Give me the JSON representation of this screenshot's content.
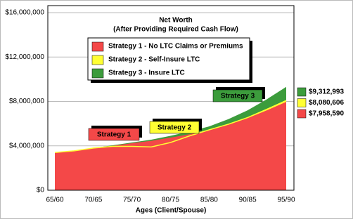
{
  "chart_data": {
    "type": "area",
    "title": "Net Worth",
    "subtitle": "(After Providing Required Cash Flow)",
    "x_label": "Ages (Client/Spouse)",
    "categories": [
      "65/60",
      null,
      "70/65",
      null,
      "75/70",
      null,
      "80/75",
      null,
      "85/80",
      null,
      "90/85",
      null,
      "95/90"
    ],
    "series": [
      {
        "name": "Strategy 1 -  No LTC Claims or Premiums",
        "color": "#f44848",
        "values": [
          3400000,
          3550000,
          3800000,
          4000000,
          4240000,
          4450000,
          4740000,
          5050000,
          5440000,
          5900000,
          6500000,
          7200000,
          7958590
        ],
        "value_labels": [
          null,
          null,
          null,
          null,
          null,
          null,
          null,
          null,
          null,
          null,
          null,
          null,
          "$7,958,590"
        ]
      },
      {
        "name": "Strategy 2 -  Self-Insure LTC",
        "color": "#ffff33",
        "values": [
          3400000,
          3550000,
          3800000,
          3950000,
          3950000,
          3900000,
          4300000,
          4900000,
          5440000,
          5950000,
          6550000,
          7300000,
          8080606
        ],
        "value_labels": [
          null,
          null,
          null,
          null,
          null,
          null,
          null,
          null,
          null,
          null,
          null,
          null,
          "$8,080,606"
        ]
      },
      {
        "name": "Strategy 3 -  Insure LTC",
        "color": "#3c9c3c",
        "values": [
          3400000,
          3550000,
          3800000,
          4050000,
          4300000,
          4550000,
          4900000,
          5300000,
          5750000,
          6400000,
          7200000,
          8200000,
          9312993
        ],
        "value_labels": [
          null,
          null,
          null,
          null,
          null,
          null,
          null,
          null,
          null,
          null,
          null,
          null,
          "$9,312,993"
        ]
      }
    ],
    "annotations": [
      {
        "text": "Strategy 1",
        "color": "#f44848"
      },
      {
        "text": "Strategy 2",
        "color": "#ffff33"
      },
      {
        "text": "Strategy 3",
        "color": "#3c9c3c"
      }
    ],
    "ylim": [
      0,
      16000000
    ],
    "yticks": [
      {
        "value": 0,
        "label": "$0"
      },
      {
        "value": 4000000,
        "label": "$4,000,000"
      },
      {
        "value": 8000000,
        "label": "$8,000,000"
      },
      {
        "value": 12000000,
        "label": "$12,000,000"
      },
      {
        "value": 16000000,
        "label": "$16,000,000"
      }
    ],
    "grid": true
  }
}
